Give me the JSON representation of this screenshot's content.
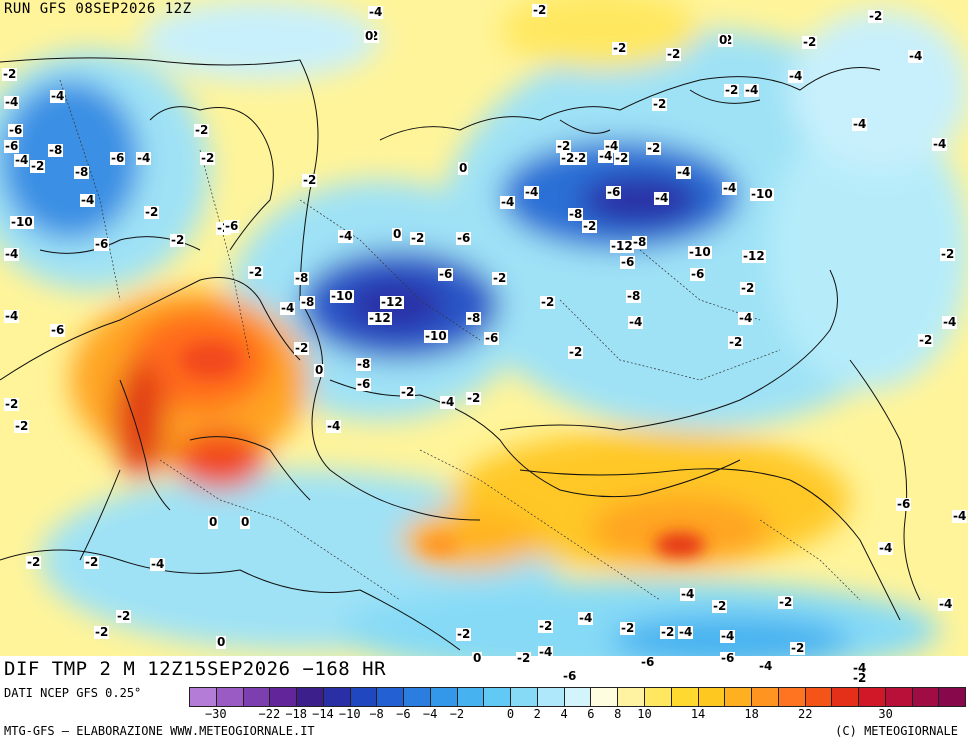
{
  "header": {
    "run": "RUN GFS 08SEP2026 12Z"
  },
  "title": "DIF TMP 2 M 12Z15SEP2026 −168 HR",
  "source": "DATI NCEP GFS 0.25°",
  "footer": {
    "left": "MTG-GFS – ELABORAZIONE WWW.METEOGIORNALE.IT",
    "right": "(C) METEOGIORNALE"
  },
  "legend": {
    "colors": [
      "#b47cd6",
      "#9a5cc4",
      "#7d3fb0",
      "#62259a",
      "#3d1f8c",
      "#2a2fa6",
      "#2046c0",
      "#2260d4",
      "#2b7ee0",
      "#3498ea",
      "#46b2f0",
      "#62c8f4",
      "#86daf6",
      "#aee8fa",
      "#d4f4fc",
      "#fffde0",
      "#fff2a0",
      "#ffe760",
      "#ffd830",
      "#ffc820",
      "#ffb020",
      "#ff9420",
      "#ff7420",
      "#f55418",
      "#e43018",
      "#d01828",
      "#b81038",
      "#a00c44",
      "#88084c"
    ],
    "ticks": [
      "−30",
      "−22",
      "−18",
      "−14",
      "−10",
      "−8",
      "−6",
      "−4",
      "−2",
      "0",
      "2",
      "4",
      "6",
      "8",
      "10",
      "14",
      "18",
      "22",
      "30"
    ]
  },
  "map_labels": [
    "-4",
    "0",
    "-2",
    "-2",
    "0",
    "-2",
    "-2",
    "0",
    "-2",
    "-4",
    "-2",
    "-4",
    "-2",
    "-4",
    "-4",
    "-2",
    "-2",
    "-4",
    "-6",
    "-6",
    "-8",
    "-6",
    "-4",
    "-2",
    "-8",
    "-4",
    "-4",
    "-2",
    "-2",
    "-10",
    "-2",
    "-6",
    "-2",
    "-2",
    "0",
    "-4",
    "0",
    "-2",
    "-6",
    "-4",
    "-8",
    "-6",
    "-2",
    "-4",
    "-8",
    "-10",
    "-12",
    "-12",
    "-8",
    "-6",
    "-10",
    "-2",
    "0",
    "-8",
    "-6",
    "-2",
    "-4",
    "-2",
    "-4",
    "-2",
    "-2",
    "-4",
    "-2",
    "-4",
    "-2",
    "-2",
    "-4",
    "-4",
    "-2",
    "-2",
    "-8",
    "-4",
    "-10",
    "-4",
    "-6",
    "-4",
    "-2",
    "-12",
    "-8",
    "-10",
    "-12",
    "-6",
    "-8",
    "-6",
    "-4",
    "-2",
    "-4",
    "-2",
    "-2",
    "-4",
    "-4",
    "-2",
    "-2",
    "-6",
    "-4",
    "-6",
    "-2",
    "-2",
    "0",
    "0",
    "-2",
    "-2",
    "-4",
    "-2",
    "-2",
    "0",
    "-2",
    "-2",
    "-4",
    "-2",
    "-2",
    "-4",
    "-4",
    "-6",
    "-4",
    "-2",
    "-4",
    "-2",
    "-4",
    "-4",
    "-4",
    "-6",
    "-2",
    "-2",
    "-4",
    "0",
    "-2",
    "-4",
    "-6",
    "-6",
    "-4",
    "-2",
    "-2",
    "0",
    "-2",
    "-2",
    "0",
    "-2",
    "-4",
    "-2",
    "-4",
    "-4"
  ]
}
